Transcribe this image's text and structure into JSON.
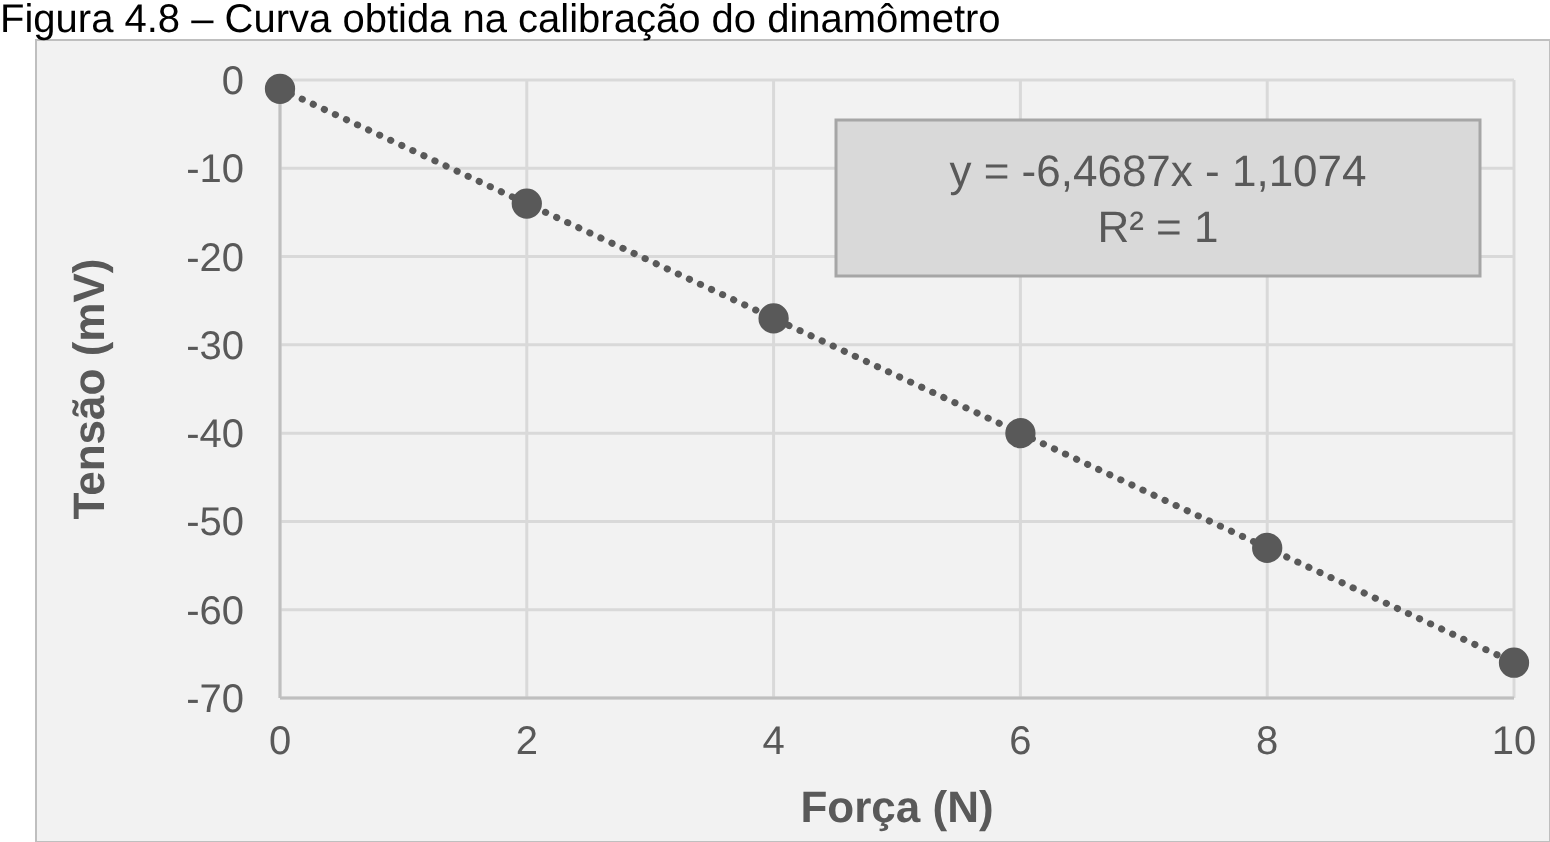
{
  "chart_data": {
    "type": "scatter",
    "title": "Figura 4.8 – Curva obtida na calibração do dinamômetro",
    "xlabel": "Força (N)",
    "ylabel": "Tensão (mV)",
    "x": [
      0,
      2,
      4,
      6,
      8,
      10
    ],
    "series": [
      {
        "type": "scatter",
        "color": "#595959",
        "marker": "circle",
        "values": [
          -1,
          -14,
          -27,
          -40,
          -53,
          -66
        ]
      },
      {
        "type": "line",
        "color": "#595959",
        "line_style": "dotted",
        "marker": "none",
        "x": [
          0,
          10
        ],
        "values": [
          -1,
          -66
        ]
      }
    ],
    "annotations": [
      "y = -6,4687x - 1,1074",
      "R² = 1"
    ],
    "xlim": [
      0,
      10
    ],
    "xticks": [
      0,
      2,
      4,
      6,
      8,
      10
    ],
    "ylim": [
      -70,
      0
    ],
    "yticks": [
      0,
      -10,
      -20,
      -30,
      -40,
      -50,
      -60,
      -70
    ],
    "grid": true
  }
}
